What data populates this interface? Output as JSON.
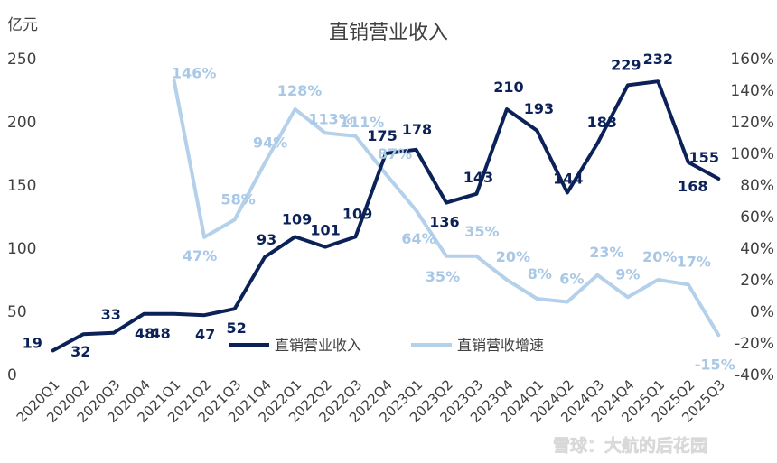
{
  "chart_data": {
    "type": "line",
    "title": "直销营业收入",
    "y_unit": "亿元",
    "categories": [
      "2020Q1",
      "2020Q2",
      "2020Q3",
      "2020Q4",
      "2021Q1",
      "2021Q2",
      "2021Q3",
      "2021Q4",
      "2022Q1",
      "2022Q2",
      "2022Q3",
      "2022Q4",
      "2023Q1",
      "2023Q2",
      "2023Q3",
      "2023Q4",
      "2024Q1",
      "2024Q2",
      "2024Q3",
      "2024Q4",
      "2025Q1",
      "2025Q2",
      "2025Q3"
    ],
    "y_left": {
      "range": [
        0,
        250
      ],
      "ticks": [
        0,
        50,
        100,
        150,
        200,
        250
      ]
    },
    "y_right": {
      "range": [
        -40,
        160
      ],
      "ticks": [
        "-40%",
        "-20%",
        "0%",
        "20%",
        "40%",
        "60%",
        "80%",
        "100%",
        "120%",
        "140%",
        "160%"
      ]
    },
    "legend_position": "center",
    "grid": false,
    "series": [
      {
        "name": "直销营业收入",
        "axis": "left",
        "color": "#0b2158",
        "values": [
          19,
          32,
          33,
          48,
          48,
          47,
          52,
          93,
          109,
          101,
          109,
          175,
          178,
          136,
          143,
          210,
          193,
          144,
          183,
          229,
          232,
          168,
          155
        ],
        "labels": [
          "19",
          "32",
          "33",
          "48",
          "48",
          "47",
          "52",
          "93",
          "109",
          "101",
          "109",
          "175",
          "178",
          "136",
          "143",
          "210",
          "193",
          "144",
          "183",
          "229",
          "232",
          "168",
          "155"
        ]
      },
      {
        "name": "直销营收增速",
        "axis": "right",
        "color": "#b4d0ea",
        "values": [
          null,
          null,
          null,
          null,
          146,
          47,
          58,
          94,
          128,
          113,
          111,
          87,
          64,
          35,
          35,
          20,
          8,
          6,
          23,
          9,
          20,
          17,
          -15
        ],
        "labels": [
          "",
          "",
          "",
          "",
          "146%",
          "47%",
          "58%",
          "94%",
          "128%",
          "113%",
          "111%",
          "87%",
          "64%",
          "35%",
          "35%",
          "20%",
          "8%",
          "6%",
          "23%",
          "9%",
          "20%",
          "17%",
          "-15%"
        ]
      }
    ]
  },
  "watermark": {
    "text": "雪球：大航的后花园"
  }
}
